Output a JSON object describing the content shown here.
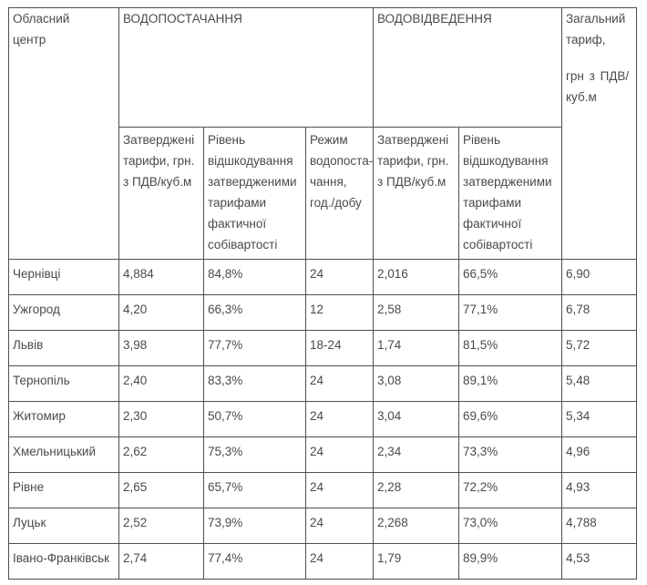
{
  "chart_data": {
    "type": "table",
    "headers": {
      "region_center": "Обласний\nцентр",
      "water_supply": "ВОДОПОСТАЧАННЯ",
      "water_drainage": "ВОДОВІДВЕДЕННЯ",
      "total_tariff_top": "Загальний\nтариф,",
      "total_tariff_bottom": "грн з ПДВ/\nкуб.м",
      "approved_tariffs": "Затверджені тарифи, грн. з ПДВ/куб.м",
      "reimbursement": "Рівень\nвідшкодування\nзатвердженими\nтарифами\nфактичної\nсобівартості",
      "supply_mode": "Режим\nводопоста-\nчання,\nгод./добу"
    },
    "columns": [
      "city",
      "supply_tariff",
      "supply_reimbursement",
      "mode",
      "drainage_tariff",
      "drainage_reimbursement",
      "total"
    ],
    "rows": [
      {
        "city": "Чернівці",
        "supply_tariff": "4,884",
        "supply_reimbursement": "84,8%",
        "mode": "24",
        "drainage_tariff": "2,016",
        "drainage_reimbursement": "66,5%",
        "total": "6,90"
      },
      {
        "city": "Ужгород",
        "supply_tariff": "4,20",
        "supply_reimbursement": "66,3%",
        "mode": "12",
        "drainage_tariff": "2,58",
        "drainage_reimbursement": "77,1%",
        "total": "6,78"
      },
      {
        "city": "Львів",
        "supply_tariff": "3,98",
        "supply_reimbursement": "77,7%",
        "mode": "18-24",
        "drainage_tariff": "1,74",
        "drainage_reimbursement": "81,5%",
        "total": "5,72"
      },
      {
        "city": "Тернопіль",
        "supply_tariff": "2,40",
        "supply_reimbursement": "83,3%",
        "mode": "24",
        "drainage_tariff": "3,08",
        "drainage_reimbursement": "89,1%",
        "total": "5,48"
      },
      {
        "city": "Житомир",
        "supply_tariff": "2,30",
        "supply_reimbursement": "50,7%",
        "mode": "24",
        "drainage_tariff": "3,04",
        "drainage_reimbursement": "69,6%",
        "total": "5,34"
      },
      {
        "city": "Хмельницький",
        "supply_tariff": "2,62",
        "supply_reimbursement": "75,3%",
        "mode": "24",
        "drainage_tariff": "2,34",
        "drainage_reimbursement": "73,3%",
        "total": "4,96"
      },
      {
        "city": "Рівне",
        "supply_tariff": "2,65",
        "supply_reimbursement": "65,7%",
        "mode": "24",
        "drainage_tariff": "2,28",
        "drainage_reimbursement": "72,2%",
        "total": "4,93"
      },
      {
        "city": "Луцьк",
        "supply_tariff": "2,52",
        "supply_reimbursement": "73,9%",
        "mode": "24",
        "drainage_tariff": "2,268",
        "drainage_reimbursement": "73,0%",
        "total": "4,788"
      },
      {
        "city": "Івано-Франківськ",
        "supply_tariff": "2,74",
        "supply_reimbursement": "77,4%",
        "mode": "24",
        "drainage_tariff": "1,79",
        "drainage_reimbursement": "89,9%",
        "total": "4,53"
      }
    ],
    "colors": {
      "text": "#4a4a4a",
      "border": "#4f4f4f",
      "background": "#ffffff"
    }
  }
}
